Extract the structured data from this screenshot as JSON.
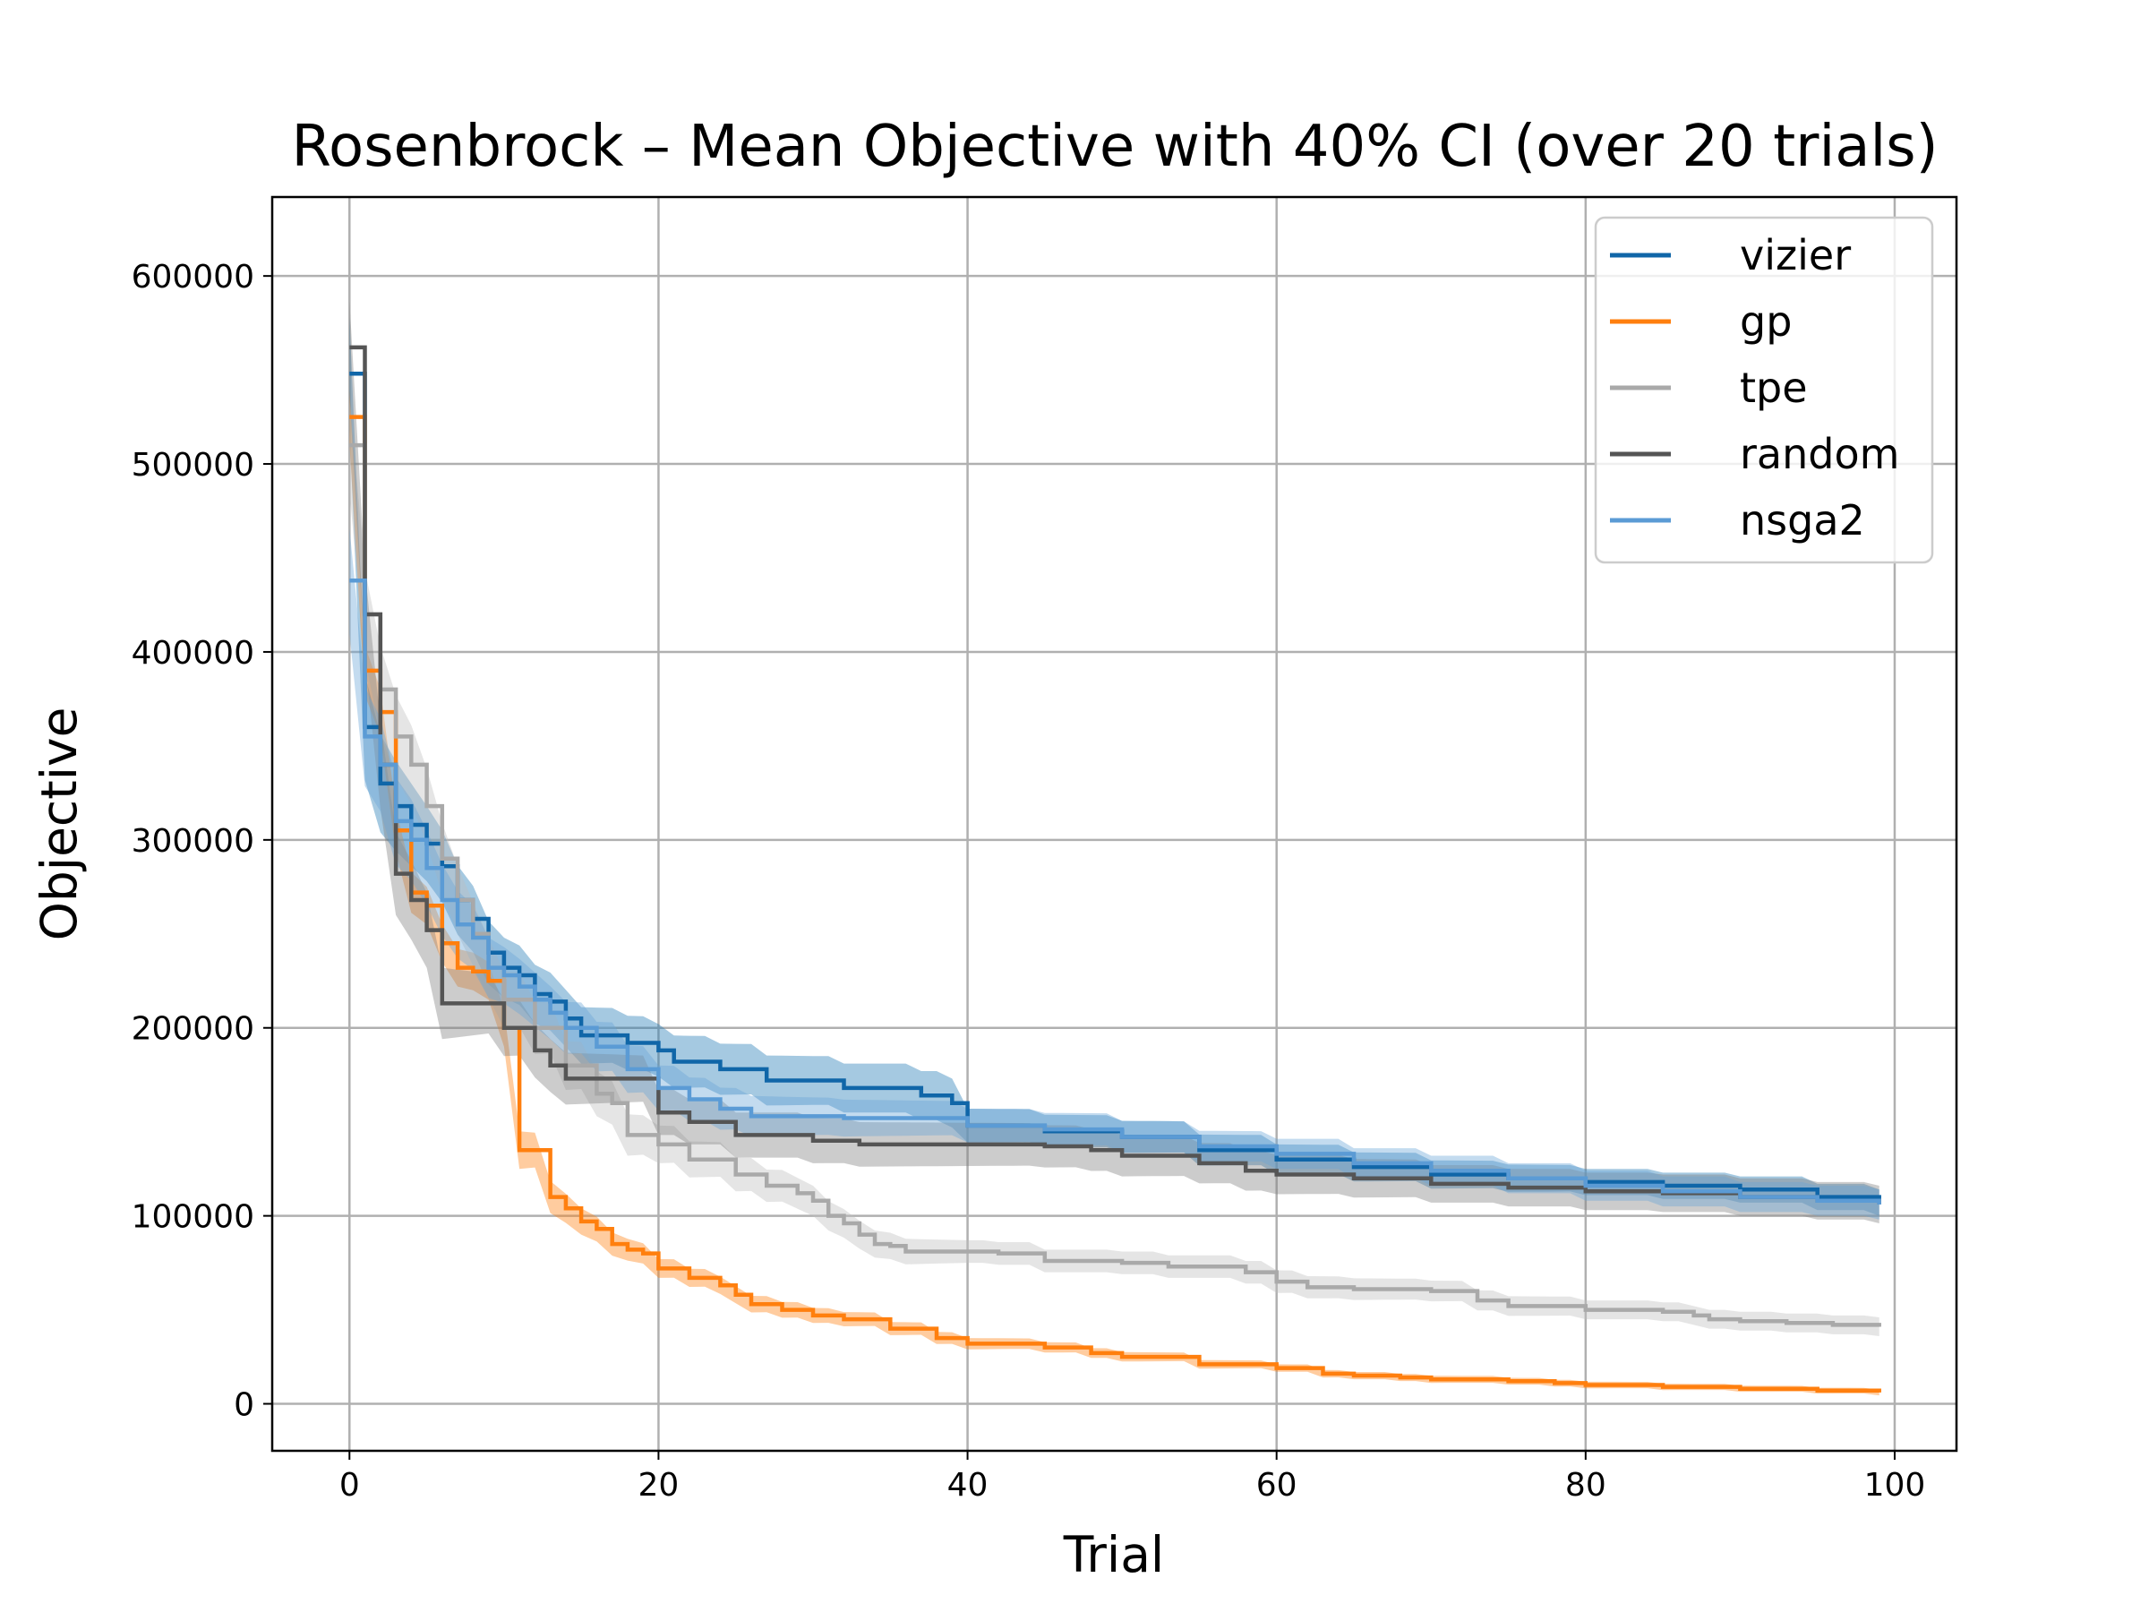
{
  "chart_data": {
    "type": "line",
    "title": "Rosenbrock – Mean Objective with 40% CI (over 20 trials)",
    "xlabel": "Trial",
    "ylabel": "Objective",
    "xlim": [
      -5,
      104
    ],
    "ylim": [
      -25000,
      642000
    ],
    "x_ticks": [
      0,
      20,
      40,
      60,
      80,
      100
    ],
    "y_ticks": [
      0,
      100000,
      200000,
      300000,
      400000,
      500000,
      600000
    ],
    "grid": true,
    "legend_position": "top-right",
    "series": [
      {
        "name": "vizier",
        "color": "#1066a8",
        "band_color": "#1f77b4",
        "points": [
          [
            0,
            548000
          ],
          [
            1,
            360000
          ],
          [
            2,
            330000
          ],
          [
            3,
            318000
          ],
          [
            4,
            308000
          ],
          [
            5,
            298000
          ],
          [
            6,
            286000
          ],
          [
            7,
            268000
          ],
          [
            8,
            258000
          ],
          [
            9,
            240000
          ],
          [
            10,
            232000
          ],
          [
            11,
            228000
          ],
          [
            12,
            218000
          ],
          [
            13,
            214000
          ],
          [
            14,
            205000
          ],
          [
            15,
            196000
          ],
          [
            18,
            192000
          ],
          [
            20,
            188000
          ],
          [
            21,
            182000
          ],
          [
            24,
            178000
          ],
          [
            27,
            172000
          ],
          [
            32,
            168000
          ],
          [
            37,
            164000
          ],
          [
            39,
            160000
          ],
          [
            40,
            148000
          ],
          [
            42,
            148000
          ],
          [
            45,
            145000
          ],
          [
            50,
            142000
          ],
          [
            55,
            135000
          ],
          [
            60,
            130000
          ],
          [
            65,
            126000
          ],
          [
            70,
            122000
          ],
          [
            75,
            120000
          ],
          [
            80,
            118000
          ],
          [
            85,
            116000
          ],
          [
            90,
            114000
          ],
          [
            95,
            110000
          ],
          [
            99,
            107000
          ]
        ],
        "ci": [
          [
            0,
            30000
          ],
          [
            5,
            20000
          ],
          [
            10,
            16000
          ],
          [
            20,
            14000
          ],
          [
            30,
            13000
          ],
          [
            39,
            13000
          ],
          [
            40,
            9000
          ],
          [
            60,
            8000
          ],
          [
            80,
            7000
          ],
          [
            99,
            7000
          ]
        ]
      },
      {
        "name": "gp",
        "color": "#ff7f0e",
        "band_color": "#ff7f0e",
        "points": [
          [
            0,
            525000
          ],
          [
            1,
            390000
          ],
          [
            2,
            368000
          ],
          [
            3,
            305000
          ],
          [
            4,
            272000
          ],
          [
            5,
            265000
          ],
          [
            6,
            245000
          ],
          [
            7,
            232000
          ],
          [
            8,
            230000
          ],
          [
            9,
            225000
          ],
          [
            10,
            200000
          ],
          [
            11,
            135000
          ],
          [
            12,
            135000
          ],
          [
            13,
            110000
          ],
          [
            14,
            104000
          ],
          [
            15,
            97000
          ],
          [
            16,
            93000
          ],
          [
            17,
            85000
          ],
          [
            18,
            82000
          ],
          [
            19,
            80000
          ],
          [
            20,
            72000
          ],
          [
            22,
            67000
          ],
          [
            24,
            63000
          ],
          [
            25,
            58000
          ],
          [
            26,
            53000
          ],
          [
            28,
            50000
          ],
          [
            30,
            47000
          ],
          [
            32,
            45000
          ],
          [
            35,
            40000
          ],
          [
            38,
            35000
          ],
          [
            40,
            32000
          ],
          [
            45,
            30000
          ],
          [
            48,
            27000
          ],
          [
            50,
            25000
          ],
          [
            55,
            21000
          ],
          [
            60,
            19000
          ],
          [
            63,
            16000
          ],
          [
            65,
            15000
          ],
          [
            68,
            14000
          ],
          [
            70,
            13000
          ],
          [
            75,
            12000
          ],
          [
            78,
            11000
          ],
          [
            80,
            10000
          ],
          [
            85,
            9000
          ],
          [
            90,
            8000
          ],
          [
            95,
            7000
          ],
          [
            99,
            6000
          ]
        ],
        "ci": [
          [
            0,
            14000
          ],
          [
            5,
            10000
          ],
          [
            10,
            10000
          ],
          [
            11,
            10000
          ],
          [
            15,
            7000
          ],
          [
            20,
            5000
          ],
          [
            30,
            4000
          ],
          [
            40,
            3000
          ],
          [
            60,
            2000
          ],
          [
            99,
            1500
          ]
        ]
      },
      {
        "name": "tpe",
        "color": "#a9a9a9",
        "band_color": "#bdbdbd",
        "points": [
          [
            0,
            510000
          ],
          [
            1,
            420000
          ],
          [
            2,
            380000
          ],
          [
            3,
            355000
          ],
          [
            4,
            340000
          ],
          [
            5,
            318000
          ],
          [
            6,
            290000
          ],
          [
            7,
            268000
          ],
          [
            8,
            250000
          ],
          [
            9,
            232000
          ],
          [
            10,
            215000
          ],
          [
            12,
            200000
          ],
          [
            14,
            180000
          ],
          [
            16,
            165000
          ],
          [
            17,
            160000
          ],
          [
            18,
            143000
          ],
          [
            20,
            138000
          ],
          [
            22,
            130000
          ],
          [
            25,
            122000
          ],
          [
            27,
            116000
          ],
          [
            29,
            112000
          ],
          [
            30,
            108000
          ],
          [
            31,
            100000
          ],
          [
            32,
            96000
          ],
          [
            33,
            90000
          ],
          [
            34,
            85000
          ],
          [
            35,
            84000
          ],
          [
            36,
            81000
          ],
          [
            40,
            81000
          ],
          [
            42,
            80000
          ],
          [
            45,
            76000
          ],
          [
            50,
            75000
          ],
          [
            53,
            73000
          ],
          [
            55,
            73000
          ],
          [
            58,
            70000
          ],
          [
            60,
            65000
          ],
          [
            62,
            62000
          ],
          [
            65,
            61000
          ],
          [
            70,
            60000
          ],
          [
            73,
            55000
          ],
          [
            75,
            52000
          ],
          [
            80,
            50000
          ],
          [
            85,
            49000
          ],
          [
            87,
            47000
          ],
          [
            88,
            45000
          ],
          [
            90,
            44000
          ],
          [
            93,
            43000
          ],
          [
            96,
            42000
          ],
          [
            99,
            41000
          ]
        ],
        "ci": [
          [
            0,
            25000
          ],
          [
            5,
            20000
          ],
          [
            10,
            15000
          ],
          [
            20,
            10000
          ],
          [
            30,
            8000
          ],
          [
            40,
            6000
          ],
          [
            60,
            6000
          ],
          [
            80,
            5000
          ],
          [
            99,
            5000
          ]
        ]
      },
      {
        "name": "random",
        "color": "#555555",
        "band_color": "#808080",
        "points": [
          [
            0,
            562000
          ],
          [
            1,
            420000
          ],
          [
            2,
            340000
          ],
          [
            3,
            282000
          ],
          [
            4,
            268000
          ],
          [
            5,
            252000
          ],
          [
            6,
            213000
          ],
          [
            9,
            213000
          ],
          [
            10,
            200000
          ],
          [
            11,
            200000
          ],
          [
            12,
            188000
          ],
          [
            13,
            180000
          ],
          [
            14,
            173000
          ],
          [
            18,
            173000
          ],
          [
            20,
            155000
          ],
          [
            22,
            150000
          ],
          [
            25,
            143000
          ],
          [
            30,
            140000
          ],
          [
            33,
            138000
          ],
          [
            40,
            138000
          ],
          [
            45,
            137000
          ],
          [
            48,
            135000
          ],
          [
            50,
            132000
          ],
          [
            55,
            128000
          ],
          [
            58,
            124000
          ],
          [
            60,
            122000
          ],
          [
            65,
            120000
          ],
          [
            70,
            117000
          ],
          [
            75,
            115000
          ],
          [
            80,
            113000
          ],
          [
            85,
            112000
          ],
          [
            90,
            110000
          ],
          [
            95,
            108000
          ],
          [
            99,
            106000
          ]
        ],
        "ci": [
          [
            0,
            25000
          ],
          [
            5,
            20000
          ],
          [
            10,
            15000
          ],
          [
            20,
            12000
          ],
          [
            30,
            12000
          ],
          [
            50,
            11000
          ],
          [
            70,
            10000
          ],
          [
            99,
            10000
          ]
        ]
      },
      {
        "name": "nsga2",
        "color": "#5b9bd5",
        "band_color": "#6aa6d8",
        "points": [
          [
            0,
            438000
          ],
          [
            1,
            355000
          ],
          [
            2,
            340000
          ],
          [
            3,
            310000
          ],
          [
            4,
            300000
          ],
          [
            5,
            285000
          ],
          [
            6,
            268000
          ],
          [
            7,
            255000
          ],
          [
            8,
            248000
          ],
          [
            9,
            232000
          ],
          [
            10,
            228000
          ],
          [
            11,
            222000
          ],
          [
            12,
            215000
          ],
          [
            13,
            208000
          ],
          [
            14,
            200000
          ],
          [
            16,
            190000
          ],
          [
            18,
            178000
          ],
          [
            20,
            168000
          ],
          [
            22,
            162000
          ],
          [
            24,
            157000
          ],
          [
            26,
            153000
          ],
          [
            30,
            153000
          ],
          [
            32,
            152000
          ],
          [
            35,
            152000
          ],
          [
            40,
            148000
          ],
          [
            45,
            146000
          ],
          [
            50,
            142000
          ],
          [
            55,
            137000
          ],
          [
            60,
            133000
          ],
          [
            65,
            128000
          ],
          [
            70,
            124000
          ],
          [
            75,
            120000
          ],
          [
            80,
            116000
          ],
          [
            85,
            113000
          ],
          [
            90,
            110000
          ],
          [
            95,
            108000
          ],
          [
            99,
            106000
          ]
        ],
        "ci": [
          [
            0,
            28000
          ],
          [
            5,
            20000
          ],
          [
            10,
            15000
          ],
          [
            20,
            12000
          ],
          [
            30,
            10000
          ],
          [
            40,
            9000
          ],
          [
            60,
            8000
          ],
          [
            80,
            8000
          ],
          [
            99,
            8000
          ]
        ]
      }
    ]
  }
}
